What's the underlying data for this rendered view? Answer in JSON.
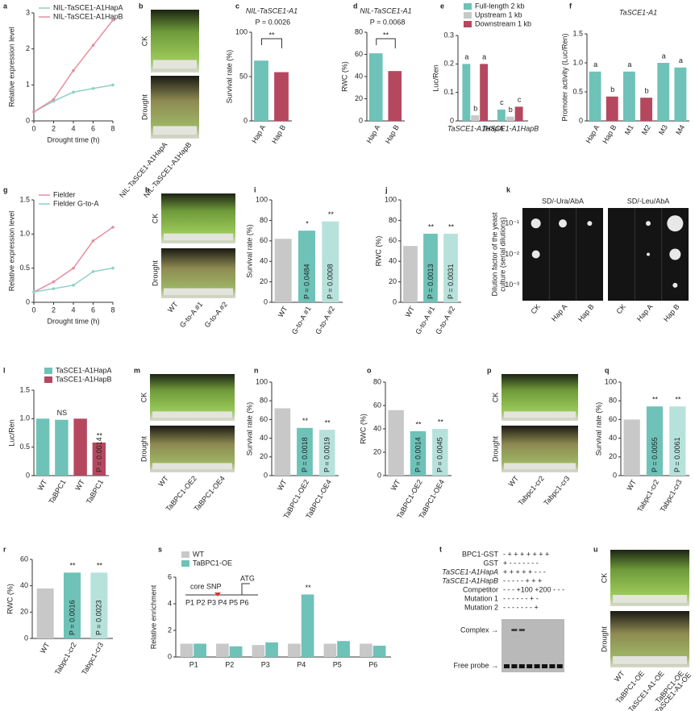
{
  "chart_data": [
    {
      "panel": "a",
      "type": "line",
      "ylabel": "Relative expression level",
      "xlabel": "Drought time (h)",
      "x": [
        0,
        2,
        4,
        6,
        8
      ],
      "xlim": [
        0,
        8
      ],
      "xticks": [
        0,
        2,
        4,
        6,
        8
      ],
      "ylim": [
        0,
        3
      ],
      "yticks": [
        0,
        1,
        2,
        3
      ],
      "series": [
        {
          "name": "NIL-TaSCE1-A1HapA",
          "color": "#8fd0c6",
          "values": [
            0.25,
            0.55,
            0.8,
            0.9,
            1.0
          ]
        },
        {
          "name": "NIL-TaSCE1-A1HapB",
          "color": "#e58fa0",
          "values": [
            0.25,
            0.6,
            1.4,
            2.1,
            2.8
          ]
        }
      ]
    },
    {
      "panel": "c",
      "type": "bar",
      "title": "NIL-TaSCE1-A1",
      "ylabel": "Survival rate (%)",
      "note": "P = 0.0026",
      "note_mark": "**",
      "categories": [
        "Hap A",
        "Hap B"
      ],
      "ylim": [
        0,
        100
      ],
      "yticks": [
        0,
        50,
        100
      ],
      "series": [
        {
          "colors": [
            "#6ec2b8",
            "#b5485f"
          ],
          "values": [
            68,
            55
          ]
        }
      ]
    },
    {
      "panel": "d",
      "type": "bar",
      "title": "NIL-TaSCE1-A1",
      "ylabel": "RWC (%)",
      "note": "P = 0.0068",
      "note_mark": "**",
      "categories": [
        "Hap A",
        "Hap B"
      ],
      "ylim": [
        0,
        80
      ],
      "yticks": [
        0,
        20,
        40,
        60,
        80
      ],
      "series": [
        {
          "colors": [
            "#6ec2b8",
            "#b5485f"
          ],
          "values": [
            61,
            45
          ]
        }
      ]
    },
    {
      "panel": "e",
      "type": "bar",
      "ylabel": "Luc/Ren",
      "categories": [
        "TaSCE1-A1HapA",
        "TaSCE1-A1HapB"
      ],
      "ylim": [
        0,
        0.3
      ],
      "yticks": [
        0,
        0.1,
        0.2,
        0.3
      ],
      "series": [
        {
          "name": "Full-length 2 kb",
          "color": "#6ec2b8",
          "values": [
            0.2,
            0.04
          ],
          "labels": [
            "a",
            "c"
          ]
        },
        {
          "name": "Upstream 1 kb",
          "color": "#c8c8c8",
          "values": [
            0.02,
            0.015
          ],
          "labels": [
            "b",
            "b"
          ]
        },
        {
          "name": "Downstream 1 kb",
          "color": "#b5485f",
          "values": [
            0.2,
            0.05
          ],
          "labels": [
            "a",
            "c"
          ]
        }
      ]
    },
    {
      "panel": "f",
      "type": "bar",
      "title": "TaSCE1-A1",
      "ylabel": "Promoter activity (Luc/Ren)",
      "categories": [
        "Hap A",
        "Hap B",
        "M1",
        "M2",
        "M3",
        "M4"
      ],
      "ylim": [
        0,
        1.5
      ],
      "yticks": [
        0,
        0.5,
        {
          "value": 1,
          "label": "1.0"
        },
        1.5
      ],
      "series": [
        {
          "colors": [
            "#6ec2b8",
            "#b5485f",
            "#6ec2b8",
            "#b5485f",
            "#6ec2b8",
            "#6ec2b8"
          ],
          "values": [
            0.85,
            0.42,
            0.85,
            0.4,
            1.0,
            0.92
          ],
          "labels": [
            "a",
            "b",
            "a",
            "b",
            "a",
            "a"
          ]
        }
      ]
    },
    {
      "panel": "g",
      "type": "line",
      "ylabel": "Relative expression level",
      "xlabel": "Drought time (h)",
      "x": [
        0,
        2,
        4,
        6,
        8
      ],
      "xlim": [
        0,
        8
      ],
      "xticks": [
        0,
        2,
        4,
        6,
        8
      ],
      "ylim": [
        0,
        1.5
      ],
      "yticks": [
        0,
        0.5,
        {
          "value": 1,
          "label": "1.0"
        },
        1.5
      ],
      "series": [
        {
          "name": "Fielder",
          "color": "#e58fa0",
          "values": [
            0.15,
            0.3,
            0.5,
            0.9,
            1.1
          ]
        },
        {
          "name": "Fielder G-to-A",
          "color": "#8fd0c6",
          "values": [
            0.15,
            0.2,
            0.25,
            0.45,
            0.5
          ]
        }
      ]
    },
    {
      "panel": "i",
      "type": "bar",
      "ylabel": "Survival rate (%)",
      "categories": [
        "WT",
        "G-to-A #1",
        "G-to-A #2"
      ],
      "ylim": [
        0,
        100
      ],
      "yticks": [
        0,
        20,
        40,
        60,
        80,
        100
      ],
      "series": [
        {
          "colors": [
            "#c8c8c8",
            "#6ec2b8",
            "#b7e2dc"
          ],
          "values": [
            62,
            70,
            79
          ],
          "labels": [
            null,
            "*",
            "**"
          ],
          "p_labels": [
            null,
            "P = 0.0484",
            "P = 0.0008"
          ]
        }
      ]
    },
    {
      "panel": "j",
      "type": "bar",
      "ylabel": "RWC (%)",
      "categories": [
        "WT",
        "G-to-A #1",
        "G-to-A #2"
      ],
      "ylim": [
        0,
        100
      ],
      "yticks": [
        0,
        20,
        40,
        60,
        80,
        100
      ],
      "series": [
        {
          "colors": [
            "#c8c8c8",
            "#6ec2b8",
            "#b7e2dc"
          ],
          "values": [
            55,
            67,
            67
          ],
          "labels": [
            null,
            "**",
            "**"
          ],
          "p_labels": [
            null,
            "P = 0.0013",
            "P = 0.0031"
          ]
        }
      ]
    },
    {
      "panel": "l",
      "type": "bar",
      "ylabel": "Luc/Ren",
      "categories": [
        "WT",
        "TaBPC1",
        "WT",
        "TaBPC1"
      ],
      "ylim": [
        0,
        1.5
      ],
      "yticks": [
        0,
        0.5,
        {
          "value": 1,
          "label": "1.0"
        },
        1.5
      ],
      "series": [
        {
          "name": "TaSCE1-A1HapA",
          "color": "#6ec2b8",
          "values": [
            1.0,
            0.98,
            null,
            null
          ],
          "labels": [
            null,
            "NS",
            null,
            null
          ]
        },
        {
          "name": "TaSCE1-A1HapB",
          "color": "#b5485f",
          "values": [
            null,
            null,
            1.0,
            0.58
          ],
          "labels": [
            null,
            null,
            null,
            "**"
          ],
          "p_labels": [
            null,
            null,
            null,
            "P = 0.0014"
          ]
        }
      ]
    },
    {
      "panel": "n",
      "type": "bar",
      "ylabel": "Survival rate (%)",
      "categories": [
        "WT",
        "TaBPC1-OE2",
        "TaBPC1-OE4"
      ],
      "ylim": [
        0,
        100
      ],
      "yticks": [
        0,
        20,
        40,
        60,
        80,
        100
      ],
      "series": [
        {
          "colors": [
            "#c8c8c8",
            "#6ec2b8",
            "#b7e2dc"
          ],
          "values": [
            72,
            51,
            49
          ],
          "labels": [
            null,
            "**",
            "**"
          ],
          "p_labels": [
            null,
            "P = 0.0018",
            "P = 0.0019"
          ]
        }
      ]
    },
    {
      "panel": "o",
      "type": "bar",
      "ylabel": "RWC (%)",
      "categories": [
        "WT",
        "TaBPC1-OE2",
        "TaBPC1-OE4"
      ],
      "ylim": [
        0,
        80
      ],
      "yticks": [
        0,
        20,
        40,
        60,
        80
      ],
      "series": [
        {
          "colors": [
            "#c8c8c8",
            "#6ec2b8",
            "#b7e2dc"
          ],
          "values": [
            56,
            38,
            40
          ],
          "labels": [
            null,
            "**",
            "**"
          ],
          "p_labels": [
            null,
            "P = 0.0014",
            "P = 0.0045"
          ]
        }
      ]
    },
    {
      "panel": "q",
      "type": "bar",
      "ylabel": "Survival rate (%)",
      "categories": [
        "WT",
        "Tabpc1-cr2",
        "Tabpc1-cr3"
      ],
      "ylim": [
        0,
        100
      ],
      "yticks": [
        0,
        20,
        40,
        60,
        80,
        100
      ],
      "series": [
        {
          "colors": [
            "#c8c8c8",
            "#6ec2b8",
            "#b7e2dc"
          ],
          "values": [
            60,
            74,
            74
          ],
          "labels": [
            null,
            "**",
            "**"
          ],
          "p_labels": [
            null,
            "P = 0.0055",
            "P = 0.0061"
          ]
        }
      ]
    },
    {
      "panel": "r",
      "type": "bar",
      "ylabel": "RWC (%)",
      "categories": [
        "WT",
        "Tabpc1-cr2",
        "Tabpc1-cr3"
      ],
      "ylim": [
        0,
        60
      ],
      "yticks": [
        0,
        20,
        40,
        60
      ],
      "series": [
        {
          "colors": [
            "#c8c8c8",
            "#6ec2b8",
            "#b7e2dc"
          ],
          "values": [
            38,
            50,
            50
          ],
          "labels": [
            null,
            "**",
            "**"
          ],
          "p_labels": [
            null,
            "P = 0.0016",
            "P = 0.0023"
          ]
        }
      ]
    },
    {
      "panel": "s",
      "type": "bar",
      "ylabel": "Relative enrichment",
      "categories": [
        "P1",
        "P2",
        "P3",
        "P4",
        "P5",
        "P6"
      ],
      "ylim": [
        0,
        6
      ],
      "yticks": [
        0,
        2,
        4,
        6
      ],
      "inset": [
        "core SNP",
        "ATG",
        "P1 P2 P3 P4  P5 P6"
      ],
      "series": [
        {
          "name": "WT",
          "color": "#c8c8c8",
          "values": [
            1.0,
            1.0,
            0.9,
            1.0,
            1.0,
            1.0
          ]
        },
        {
          "name": "TaBPC1-OE",
          "color": "#6ec2b8",
          "values": [
            1.0,
            0.8,
            1.1,
            4.7,
            1.2,
            0.85
          ],
          "labels": [
            null,
            null,
            null,
            "**",
            null,
            null
          ]
        }
      ]
    }
  ],
  "photos": [
    {
      "panel": "b",
      "row_labels": [
        "CK",
        "Drought"
      ],
      "col_labels": [
        "NIL-TaSCE1-A1HapA",
        "NIL-TaSCE1-A1HapB"
      ]
    },
    {
      "panel": "h",
      "row_labels": [
        "CK",
        "Drought"
      ],
      "col_labels": [
        "WT",
        "G-to-A #1",
        "G-to-A #2"
      ]
    },
    {
      "panel": "k",
      "headers": [
        "SD/-Ura/AbA",
        "SD/-Leu/AbA"
      ],
      "ylabel": [
        "Dilution factor of the yeast",
        "culture (serial dilutions)"
      ],
      "row_labels": [
        "10⁻¹",
        "10⁻²",
        "10⁻³"
      ],
      "col_labels": [
        "CK",
        "Hap A",
        "Hap B",
        "CK",
        "Hap A",
        "Hap B"
      ]
    },
    {
      "panel": "m",
      "row_labels": [
        "CK",
        "Drought"
      ],
      "col_labels": [
        "WT",
        "TaBPC1-OE2",
        "TaBPC1-OE4"
      ]
    },
    {
      "panel": "p",
      "row_labels": [
        "CK",
        "Drought"
      ],
      "col_labels": [
        "WT",
        "Tabpc1-cr2",
        "Tabpc1-cr3"
      ]
    },
    {
      "panel": "t",
      "row_labels": [
        "BPC1-GST",
        "GST",
        "TaSCE1-A1HapA",
        "TaSCE1-A1HapB",
        "Competitor",
        "Mutation 1",
        "Mutation 2"
      ],
      "rows": [
        "-  +  +  +  +  +  +  +",
        "+  -  -  -  -  -  -  -",
        "+  +  +  +  +  -  -  -",
        "-  -  -  -  -  +  +  +",
        "-  -  -  +100 +200  -  -  -",
        "-  -  -  -  -  -  +  -",
        "-  -  -  -  -  -  -  +"
      ],
      "band_labels": [
        "Complex →",
        "Free probe →"
      ]
    },
    {
      "panel": "u",
      "row_labels": [
        "CK",
        "Drought"
      ],
      "col_labels": [
        "WT",
        "TaBPC1-OE",
        "TaSCE1-A1-OE",
        [
          "TaBPC1-OE",
          "/TaSCE1-A1-OE"
        ]
      ]
    }
  ]
}
